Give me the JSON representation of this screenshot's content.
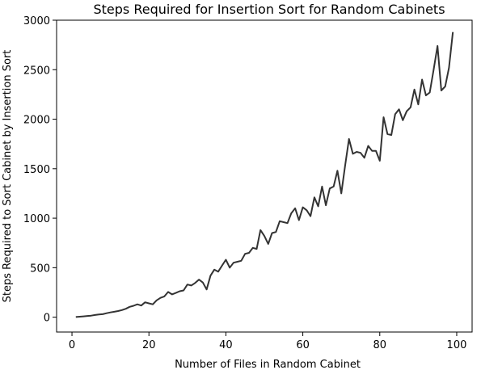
{
  "chart_data": {
    "type": "line",
    "title": "Steps Required for Insertion Sort for Random Cabinets",
    "xlabel": "Number of Files in Random Cabinet",
    "ylabel": "Steps Required to Sort Cabinet by Insertion Sort",
    "xlim": [
      -4,
      104
    ],
    "ylim": [
      -150,
      3000
    ],
    "xticks": [
      0,
      20,
      40,
      60,
      80,
      100
    ],
    "yticks": [
      0,
      500,
      1000,
      1500,
      2000,
      2500,
      3000
    ],
    "grid": false,
    "series": [
      {
        "color": "#333333",
        "x": [
          1,
          2,
          3,
          4,
          5,
          6,
          7,
          8,
          9,
          10,
          11,
          12,
          13,
          14,
          15,
          16,
          17,
          18,
          19,
          20,
          21,
          22,
          23,
          24,
          25,
          26,
          27,
          28,
          29,
          30,
          31,
          32,
          33,
          34,
          35,
          36,
          37,
          38,
          39,
          40,
          41,
          42,
          43,
          44,
          45,
          46,
          47,
          48,
          49,
          50,
          51,
          52,
          53,
          54,
          55,
          56,
          57,
          58,
          59,
          60,
          61,
          62,
          63,
          64,
          65,
          66,
          67,
          68,
          69,
          70,
          71,
          72,
          73,
          74,
          75,
          76,
          77,
          78,
          79,
          80,
          81,
          82,
          83,
          84,
          85,
          86,
          87,
          88,
          89,
          90,
          91,
          92,
          93,
          94,
          95,
          96,
          97,
          98,
          99
        ],
        "y": [
          2,
          5,
          8,
          12,
          16,
          22,
          28,
          30,
          40,
          48,
          55,
          62,
          72,
          85,
          105,
          115,
          130,
          118,
          150,
          140,
          130,
          170,
          195,
          210,
          255,
          230,
          245,
          262,
          270,
          330,
          320,
          345,
          380,
          350,
          280,
          420,
          480,
          460,
          520,
          580,
          500,
          550,
          560,
          570,
          640,
          650,
          700,
          690,
          880,
          820,
          740,
          850,
          860,
          970,
          960,
          950,
          1050,
          1100,
          980,
          1110,
          1080,
          1020,
          1210,
          1120,
          1320,
          1130,
          1300,
          1320,
          1480,
          1250,
          1530,
          1800,
          1650,
          1670,
          1660,
          1610,
          1730,
          1680,
          1680,
          1580,
          2020,
          1850,
          1840,
          2050,
          2100,
          1990,
          2080,
          2120,
          2300,
          2150,
          2400,
          2240,
          2270,
          2500,
          2740,
          2290,
          2330,
          2520,
          2880
        ]
      }
    ]
  }
}
